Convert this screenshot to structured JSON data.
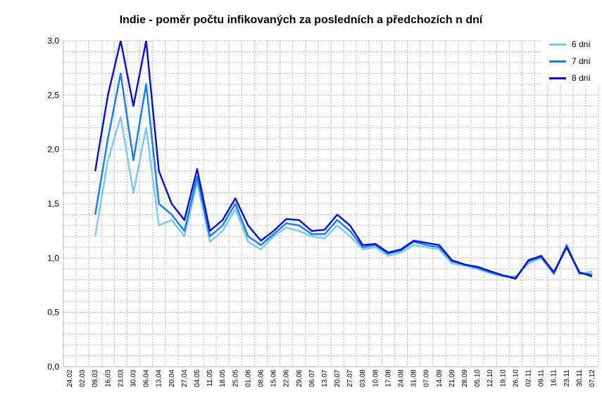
{
  "chart_data": {
    "type": "line",
    "title": "Indie - poměr počtu infikovaných za posledních a předchozích n dní",
    "xlabel": "",
    "ylabel": "",
    "ylim": [
      0,
      3
    ],
    "yticks": [
      "0,0",
      "0,5",
      "1,0",
      "1,5",
      "2,0",
      "2,5",
      "3,0"
    ],
    "categories": [
      "24.02",
      "02.03",
      "09.03",
      "16.03",
      "23.03",
      "30.03",
      "06.04",
      "13.04",
      "20.04",
      "27.04",
      "04.05",
      "11.05",
      "18.05",
      "25.05",
      "01.06",
      "08.06",
      "15.06",
      "22.06",
      "29.06",
      "06.07",
      "13.07",
      "20.07",
      "27.07",
      "03.08",
      "10.08",
      "17.08",
      "24.08",
      "31.08",
      "07.09",
      "14.09",
      "21.09",
      "28.09",
      "05.10",
      "12.10",
      "19.10",
      "26.10",
      "02.11",
      "09.11",
      "16.11",
      "23.11",
      "30.11",
      "07.12"
    ],
    "grid": true,
    "legend_position": "top-right",
    "series": [
      {
        "name": "6 dní",
        "color": "#7ec8f5",
        "values": [
          null,
          null,
          1.2,
          1.9,
          2.3,
          1.6,
          2.2,
          1.3,
          1.35,
          1.2,
          1.7,
          1.15,
          1.25,
          1.45,
          1.15,
          1.08,
          1.2,
          1.28,
          1.25,
          1.2,
          1.18,
          1.3,
          1.2,
          1.08,
          1.1,
          1.02,
          1.05,
          1.12,
          1.1,
          1.08,
          0.95,
          0.93,
          0.9,
          0.86,
          0.83,
          0.83,
          0.95,
          1.0,
          0.85,
          1.1,
          0.85,
          0.88
        ]
      },
      {
        "name": "7 dní",
        "color": "#1a7fe6",
        "values": [
          null,
          null,
          1.4,
          2.1,
          2.7,
          1.9,
          2.6,
          1.5,
          1.4,
          1.25,
          1.75,
          1.2,
          1.3,
          1.5,
          1.2,
          1.12,
          1.22,
          1.32,
          1.3,
          1.22,
          1.22,
          1.35,
          1.25,
          1.1,
          1.12,
          1.04,
          1.07,
          1.15,
          1.12,
          1.1,
          0.97,
          0.94,
          0.91,
          0.87,
          0.84,
          0.82,
          0.97,
          1.01,
          0.86,
          1.12,
          0.86,
          0.85
        ]
      },
      {
        "name": "8 dní",
        "color": "#0a14d0",
        "values": [
          null,
          null,
          1.8,
          2.5,
          3.0,
          2.4,
          3.0,
          1.8,
          1.5,
          1.35,
          1.82,
          1.25,
          1.35,
          1.55,
          1.3,
          1.16,
          1.25,
          1.36,
          1.35,
          1.25,
          1.26,
          1.4,
          1.3,
          1.12,
          1.13,
          1.05,
          1.08,
          1.16,
          1.14,
          1.12,
          0.98,
          0.94,
          0.92,
          0.88,
          0.84,
          0.81,
          0.98,
          1.02,
          0.87,
          1.1,
          0.87,
          0.83
        ]
      }
    ]
  }
}
